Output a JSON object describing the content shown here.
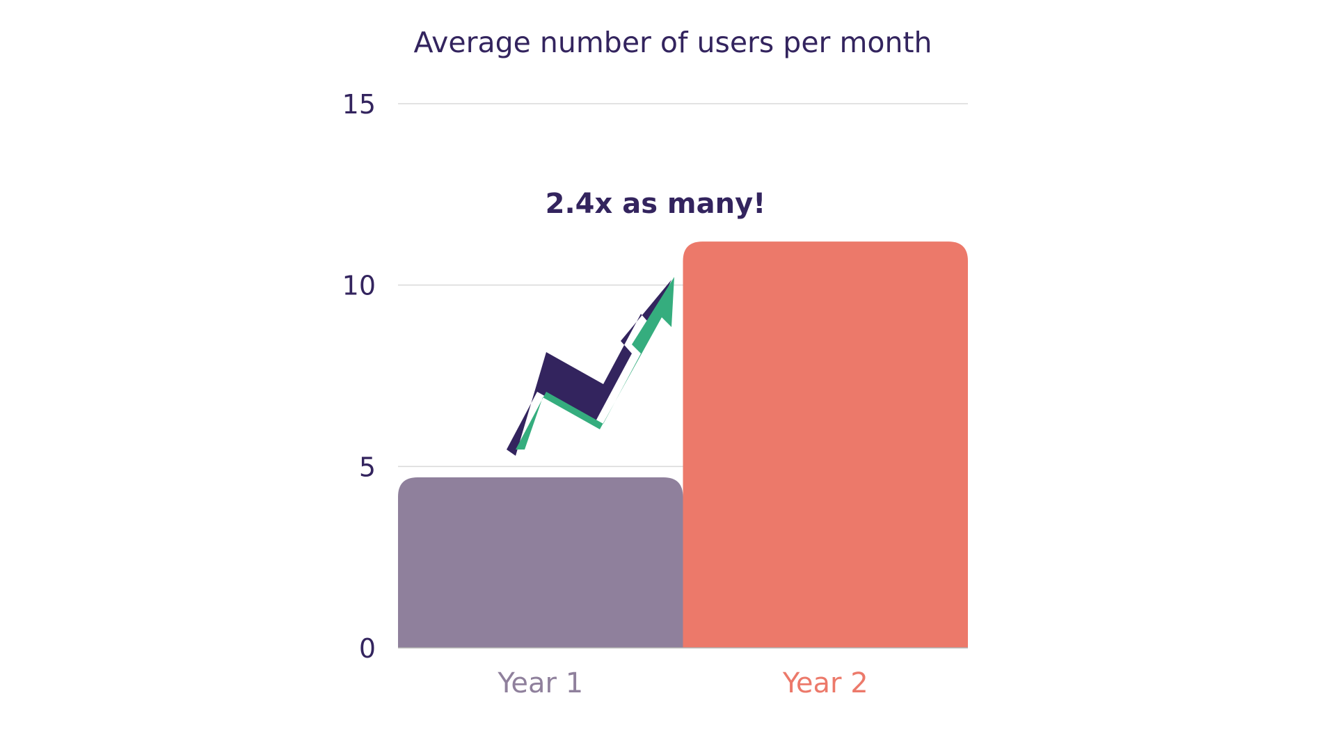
{
  "chart_data": {
    "type": "bar",
    "title": "Average number of users per month",
    "categories": [
      "Year 1",
      "Year 2"
    ],
    "values": [
      4.7,
      11.2
    ],
    "bar_colors": [
      "#8f809c",
      "#ec796a"
    ],
    "category_label_colors": [
      "#8f809c",
      "#ec796a"
    ],
    "ylim": [
      0,
      15
    ],
    "yticks": [
      0,
      5,
      10,
      15
    ],
    "ytick_labels": [
      "0",
      "5",
      "10",
      "15"
    ],
    "xlabel": "",
    "ylabel": "",
    "grid": true,
    "legend": "none",
    "annotation": {
      "text": "2.4x as many!",
      "color": "#33245e"
    },
    "decoration": {
      "icon": "trend-up-arrow-icon",
      "fill_color": "#35ad7e",
      "shadow_color": "#33245e"
    },
    "colors": {
      "text": "#33245e",
      "grid": "#d9d9d9",
      "axis": "#b0b0b0"
    }
  }
}
